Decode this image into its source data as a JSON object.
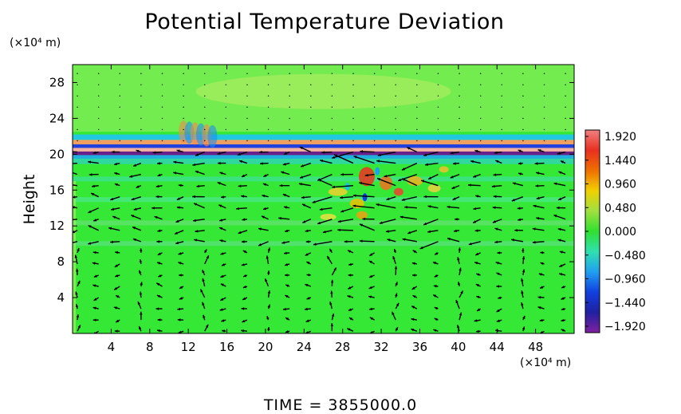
{
  "chart_data": {
    "type": "heatmap",
    "title": "Potential Temperature Deviation",
    "ylabel": "Height",
    "x_unit": "(×10⁴ m)",
    "y_unit": "(×10⁴ m)",
    "xlim": [
      0,
      52
    ],
    "ylim": [
      0,
      30
    ],
    "x_ticks": [
      4,
      8,
      12,
      16,
      20,
      24,
      28,
      32,
      36,
      40,
      44,
      48
    ],
    "y_ticks": [
      4,
      8,
      12,
      16,
      20,
      24,
      28
    ],
    "colorbar": {
      "min": -2.0,
      "max": 2.0,
      "ticks": [
        "1.920",
        "1.440",
        "0.960",
        "0.480",
        "0.000",
        "−0.480",
        "−0.960",
        "−1.440",
        "−1.920"
      ],
      "colors": [
        "#f08080",
        "#e83020",
        "#f07000",
        "#f0d000",
        "#a0e040",
        "#30e030",
        "#30e0b0",
        "#20a0f0",
        "#1040e0",
        "#2020a0",
        "#8020a0"
      ]
    },
    "overlay": "velocity vectors",
    "background_color": "#36e836"
  },
  "footer": {
    "time_text": "TIME  =  3855000.0"
  }
}
